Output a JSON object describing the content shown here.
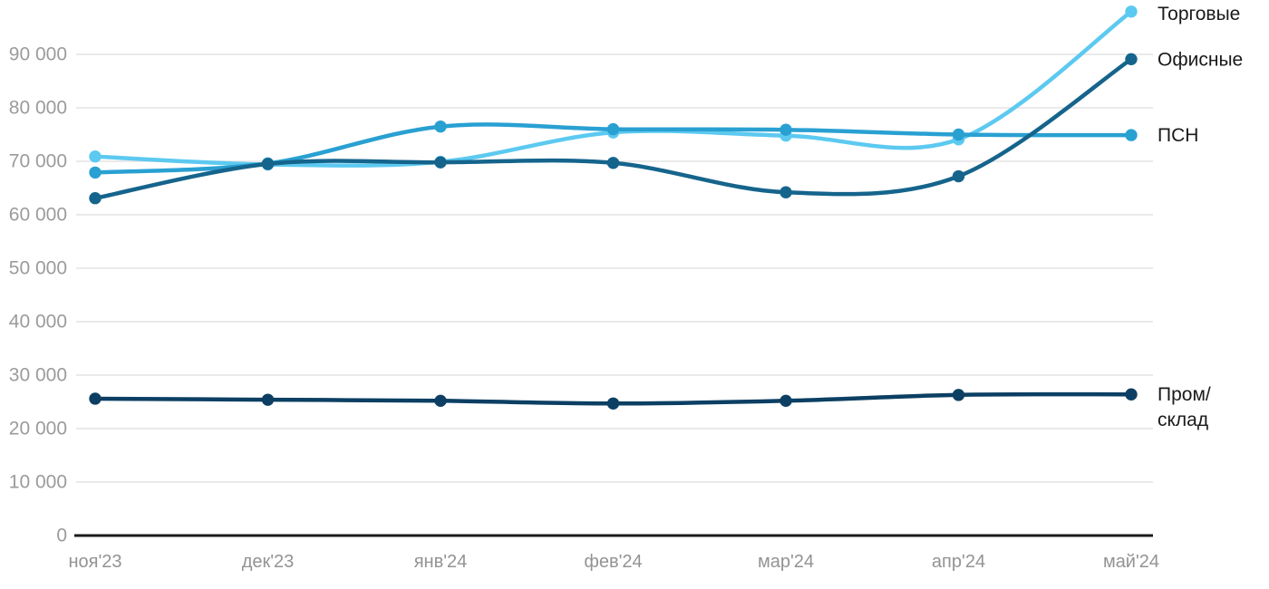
{
  "chart_data": {
    "type": "line",
    "title": "",
    "xlabel": "",
    "ylabel": "",
    "x": [
      "ноя'23",
      "дек'23",
      "янв'24",
      "фев'24",
      "мар'24",
      "апр'24",
      "май'24"
    ],
    "series": [
      {
        "name": "Торговые",
        "label_lines": [
          "Торговые"
        ],
        "color": "#5cc9f0",
        "z": 1,
        "values": [
          70900,
          69400,
          69900,
          75400,
          74800,
          74100,
          98000
        ]
      },
      {
        "name": "Офисные",
        "label_lines": [
          "Офисные"
        ],
        "color": "#15648c",
        "z": 3,
        "values": [
          63100,
          69500,
          69800,
          69700,
          64200,
          67200,
          89100
        ]
      },
      {
        "name": "ПСН",
        "label_lines": [
          "ПСН"
        ],
        "color": "#29a0d2",
        "z": 2,
        "values": [
          67900,
          69600,
          76500,
          76000,
          75900,
          75000,
          74900
        ]
      },
      {
        "name": "Пром/склад",
        "label_lines": [
          "Пром/",
          "склад"
        ],
        "color": "#0c3f63",
        "z": 4,
        "values": [
          25600,
          25400,
          25200,
          24700,
          25200,
          26300,
          26400
        ]
      }
    ],
    "y_ticks": [
      {
        "value": 0,
        "label": "0"
      },
      {
        "value": 10000,
        "label": "10 000"
      },
      {
        "value": 20000,
        "label": "20 000"
      },
      {
        "value": 30000,
        "label": "30 000"
      },
      {
        "value": 40000,
        "label": "40 000"
      },
      {
        "value": 50000,
        "label": "50 000"
      },
      {
        "value": 60000,
        "label": "60 000"
      },
      {
        "value": 70000,
        "label": "70 000"
      },
      {
        "value": 80000,
        "label": "80 000"
      },
      {
        "value": 90000,
        "label": "90 000"
      }
    ],
    "ylim": [
      0,
      100000
    ],
    "grid": true,
    "legend_position": "right-of-line-end",
    "colors": {
      "grid_line": "#e4e4e4",
      "axis_line": "#1a1a1a",
      "tick_text": "#9b9b9b",
      "legend_text": "#1a1a1a",
      "background": "#ffffff"
    }
  }
}
